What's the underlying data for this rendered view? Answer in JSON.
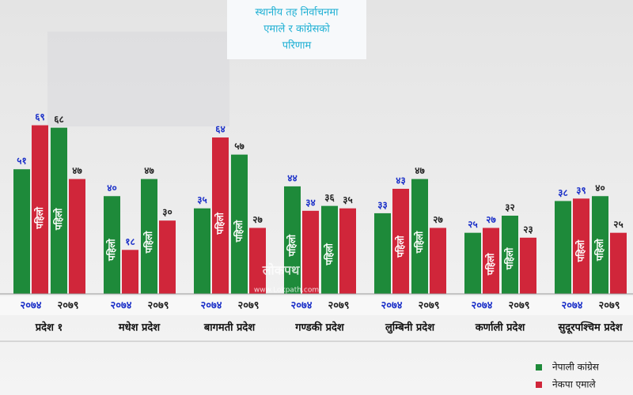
{
  "chart_data": {
    "type": "bar",
    "title_lines": [
      "स्थानीय तह निर्वाचनमा",
      "एमाले र कांग्रेसको",
      "परिणाम"
    ],
    "provinces": [
      "प्रदेश १",
      "मधेश प्रदेश",
      "बागमती प्रदेश",
      "गण्डकी प्रदेश",
      "लुम्बिनी प्रदेश",
      "कर्णाली प्रदेश",
      "सुदूरपश्चिम प्रदेश"
    ],
    "years": [
      "२०७४",
      "२०७९",
      "२०७४",
      "२०७९",
      "२०७४",
      "२०७९",
      "२०७४",
      "२०७९",
      "२०७४",
      "२०७९",
      "२०७४",
      "२०७९",
      "२०७४",
      "२०७९"
    ],
    "ylim": [
      0,
      75
    ],
    "series": [
      {
        "name": "नेपाली कांग्रेस",
        "color": "#1e8a3a",
        "values": [
          51,
          68,
          40,
          47,
          35,
          57,
          44,
          36,
          33,
          47,
          25,
          32,
          38,
          40
        ],
        "value_labels": [
          "५१",
          "६८",
          "४०",
          "४७",
          "३५",
          "५७",
          "४४",
          "३६",
          "३३",
          "४७",
          "२५",
          "३२",
          "३८",
          "४०"
        ],
        "badges": [
          null,
          "पहिलो",
          "पहिलो",
          "पहिलो",
          null,
          "पहिलो",
          "पहिलो",
          "पहिलो",
          null,
          "पहिलो",
          null,
          "पहिलो",
          null,
          "पहिलो"
        ]
      },
      {
        "name": "नेकपा एमाले",
        "color": "#d0263a",
        "values": [
          69,
          47,
          18,
          30,
          64,
          27,
          34,
          35,
          43,
          27,
          27,
          23,
          39,
          25
        ],
        "value_labels": [
          "६९",
          "४७",
          "१८",
          "३०",
          "६४",
          "२७",
          "३४",
          "३५",
          "४३",
          "२७",
          "२७",
          "२३",
          "३९",
          "२५"
        ],
        "badges": [
          "पहिलो",
          null,
          null,
          null,
          "पहिलो",
          null,
          null,
          null,
          "पहिलो",
          null,
          "पहिलो",
          null,
          "पहिलो",
          null
        ]
      }
    ],
    "watermark": "लोकपथ",
    "watermark_url": "www.Lokpath.com"
  }
}
